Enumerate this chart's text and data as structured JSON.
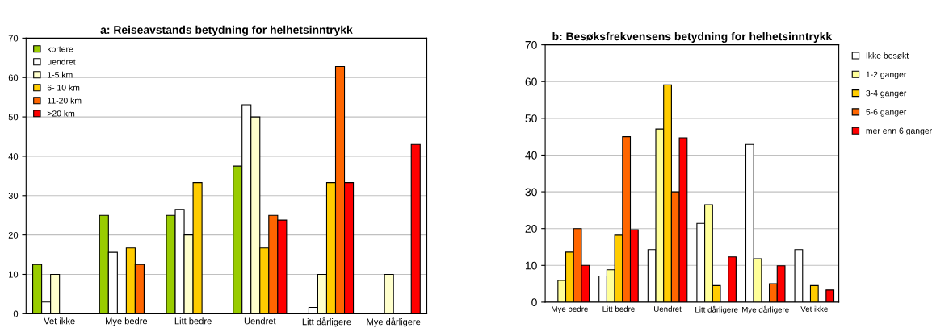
{
  "chart_data": [
    {
      "type": "bar",
      "title": "a: Reiseavstands betydning for helhetsinntrykk",
      "categories": [
        "Vet ikke",
        "Mye bedre",
        "Litt bedre",
        "Uendret",
        "Litt dårligere",
        "Mye dårligere"
      ],
      "series": [
        {
          "name": "kortere",
          "color": "#99cc00",
          "values": [
            12.5,
            25,
            25,
            37.5,
            null,
            null
          ]
        },
        {
          "name": "uendret",
          "color": "#ffffff",
          "values": [
            3,
            15.6,
            26.5,
            53.1,
            1.6,
            null
          ]
        },
        {
          "name": "1-5 km",
          "color": "#ffffcc",
          "values": [
            10,
            null,
            20,
            50,
            10,
            10
          ]
        },
        {
          "name": "6- 10 km",
          "color": "#ffcc00",
          "values": [
            null,
            16.7,
            33.3,
            16.7,
            33.3,
            null
          ]
        },
        {
          "name": "11-20 km",
          "color": "#ff6600",
          "values": [
            null,
            12.5,
            null,
            25,
            62.8,
            null
          ]
        },
        {
          "name": ">20 km",
          "color": "#ff0000",
          "values": [
            null,
            null,
            null,
            23.8,
            33.3,
            43
          ]
        }
      ],
      "ylim": [
        0,
        70
      ],
      "yticks": [
        0,
        10,
        20,
        30,
        40,
        50,
        60,
        70
      ],
      "grid": "y",
      "legend": "top left"
    },
    {
      "type": "bar",
      "title": "b: Besøksfrekvensens betydning for helhetsinntrykk",
      "categories": [
        "Mye bedre",
        "Litt bedre",
        "Uendret",
        "Litt dårligere",
        "Mye dårligere",
        "Vet ikke"
      ],
      "series": [
        {
          "name": "Ikke besøkt",
          "color": "#ffffff",
          "values": [
            null,
            7.1,
            14.3,
            21.4,
            42.9,
            14.3
          ]
        },
        {
          "name": "1-2 ganger",
          "color": "#ffff99",
          "values": [
            5.9,
            8.8,
            47.1,
            26.5,
            11.8,
            null
          ]
        },
        {
          "name": "3-4 ganger",
          "color": "#ffcc00",
          "values": [
            13.6,
            18.2,
            59.1,
            4.5,
            null,
            4.5
          ]
        },
        {
          "name": "5-6 ganger",
          "color": "#ff6600",
          "values": [
            20,
            45,
            30,
            null,
            5,
            null
          ]
        },
        {
          "name": "mer enn 6 ganger",
          "color": "#ff0000",
          "values": [
            10,
            19.7,
            44.7,
            12.3,
            9.9,
            3.3
          ]
        }
      ],
      "ylim": [
        0,
        70
      ],
      "yticks": [
        0,
        10,
        20,
        30,
        40,
        50,
        60,
        70
      ],
      "grid": "y",
      "legend": "right"
    }
  ]
}
